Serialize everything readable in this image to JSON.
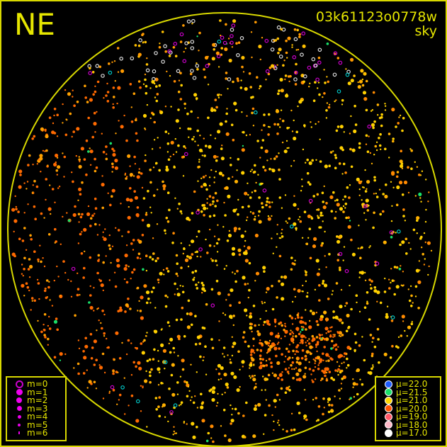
{
  "direction_label": "NE",
  "observation_id": "03k61123o0778w",
  "observation_type": "sky",
  "colors": {
    "frame": "#d8d800",
    "text": "#e6e600",
    "planet_marker": "#cc00cc"
  },
  "magnitude_legend": [
    {
      "label": "m=0",
      "style": "ring"
    },
    {
      "label": "m=1"
    },
    {
      "label": "m=2"
    },
    {
      "label": "m=3"
    },
    {
      "label": "m=4"
    },
    {
      "label": "m=5"
    },
    {
      "label": "m=6"
    }
  ],
  "brightness_legend": [
    {
      "label": "μ=22.0",
      "color": "#1e5cff"
    },
    {
      "label": "μ=21.5",
      "color": "#19e06a"
    },
    {
      "label": "μ=21.0",
      "color": "#ffd800"
    },
    {
      "label": "μ=20.0",
      "color": "#ff5200"
    },
    {
      "label": "μ=19.0",
      "color": "#ff5868"
    },
    {
      "label": "μ=18.0",
      "color": "#ffb8c8"
    },
    {
      "label": "μ=17.0",
      "color": "#ffffff"
    }
  ]
}
